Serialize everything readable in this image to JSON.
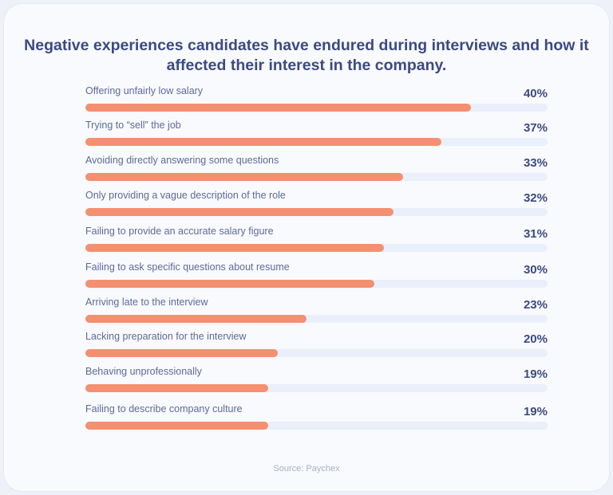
{
  "chart_data": {
    "type": "bar",
    "orientation": "horizontal",
    "title": "Negative experiences candidates have endured during interviews and how it affected their interest in the company.",
    "categories": [
      "Offering unfairly low salary",
      "Trying to “sell” the job",
      "Avoiding directly answering some questions",
      "Only providing a vague description of the role",
      "Failing to provide an accurate salary figure",
      "Failing to ask specific questions about resume",
      "Arriving late to the interview",
      "Lacking preparation for the interview",
      "Behaving unprofessionally",
      "Failing to describe company culture"
    ],
    "values": [
      40,
      37,
      33,
      32,
      31,
      30,
      23,
      20,
      19,
      19
    ],
    "value_labels": [
      "40%",
      "37%",
      "33%",
      "32%",
      "31%",
      "30%",
      "23%",
      "20%",
      "19%",
      "19%"
    ],
    "xlim": [
      0,
      48
    ],
    "grid": false,
    "bar_color": "#f48f70",
    "track_color": "#e9effb",
    "source": "Source: Paychex"
  }
}
